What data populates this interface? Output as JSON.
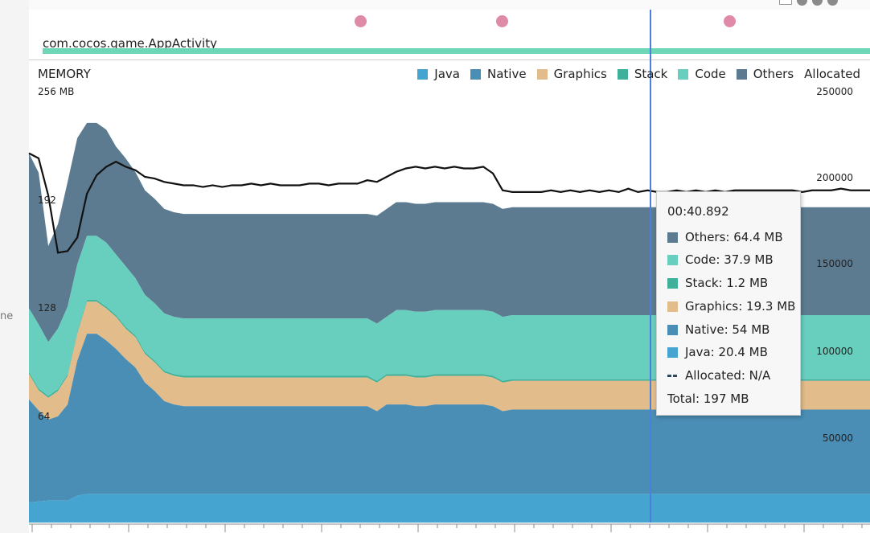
{
  "gutter_text": "ne",
  "activity": {
    "name": "com.cocos.game.AppActivity"
  },
  "chart": {
    "title": "MEMORY",
    "legend": [
      {
        "label": "Java",
        "color": "#45a5d0"
      },
      {
        "label": "Native",
        "color": "#4a8db5"
      },
      {
        "label": "Graphics",
        "color": "#e2bc8a"
      },
      {
        "label": "Stack",
        "color": "#3fb09a"
      },
      {
        "label": "Code",
        "color": "#68cfbf"
      },
      {
        "label": "Others",
        "color": "#5d7b90"
      },
      {
        "label": "Allocated",
        "color": null
      }
    ],
    "left_axis": [
      "256 MB",
      "192",
      "128",
      "64"
    ],
    "right_axis": [
      "250000",
      "200000",
      "150000",
      "100000",
      "50000"
    ]
  },
  "chart_data": {
    "type": "area",
    "title": "MEMORY",
    "stacked": true,
    "ylim": [
      0,
      256
    ],
    "ylabel_left": "MB",
    "ylim_right": [
      0,
      250000
    ],
    "x": [
      0,
      1,
      2,
      3,
      4,
      5,
      6,
      7,
      8,
      9,
      10,
      11,
      12,
      13,
      14,
      15,
      16,
      17,
      18,
      19,
      20,
      21,
      22,
      23,
      24,
      25,
      26,
      27,
      28,
      29,
      30,
      31,
      32,
      33,
      34,
      35,
      36,
      37,
      38,
      39,
      40,
      41,
      42,
      43,
      44,
      45,
      46,
      47,
      48,
      49,
      50,
      51,
      52,
      53,
      54,
      55,
      56,
      57,
      58,
      59,
      60,
      61,
      62,
      63,
      64,
      65,
      66,
      67,
      68,
      69,
      70,
      71,
      72,
      73,
      74,
      75,
      76,
      77,
      78,
      79,
      80,
      81,
      82,
      83,
      84,
      85,
      86,
      87
    ],
    "series": [
      {
        "name": "Java",
        "values": [
          12,
          12.5,
          13,
          13,
          13,
          16,
          17,
          17,
          17,
          17,
          17,
          17,
          17,
          17,
          17,
          17,
          17,
          17,
          17,
          17,
          17,
          17,
          17,
          17,
          17,
          17,
          17,
          17,
          17,
          17,
          17,
          17,
          17,
          17,
          17,
          17,
          17,
          17,
          17,
          17,
          17,
          17,
          17,
          17,
          17,
          17,
          17,
          17,
          17,
          17,
          17,
          17,
          17,
          17,
          17,
          17,
          17,
          17,
          17,
          17,
          17,
          17,
          17,
          17,
          17,
          17,
          17,
          17,
          17,
          17,
          17,
          17,
          17,
          17,
          17,
          17,
          17,
          17,
          17,
          17,
          17,
          17,
          17,
          17,
          17,
          17,
          17,
          17
        ]
      },
      {
        "name": "Native",
        "values": [
          61,
          54,
          48,
          50,
          57,
          80,
          95,
          95,
          91,
          86,
          80,
          75,
          66,
          61,
          55,
          53,
          52,
          52,
          52,
          52,
          52,
          52,
          52,
          52,
          52,
          52,
          52,
          52,
          52,
          52,
          52,
          52,
          52,
          52,
          52,
          52,
          49,
          53,
          53,
          53,
          52,
          52,
          53,
          53,
          53,
          53,
          53,
          53,
          52,
          49,
          50,
          50,
          50,
          50,
          50,
          50,
          50,
          50,
          50,
          50,
          50,
          50,
          50,
          50,
          50,
          50,
          50,
          50,
          50,
          50,
          50,
          50,
          50,
          50,
          50,
          50,
          50,
          50,
          50,
          50,
          50,
          50,
          50,
          50,
          50,
          50,
          50,
          50
        ]
      },
      {
        "name": "Graphics",
        "values": [
          15,
          12,
          13,
          15,
          17,
          16,
          19,
          19,
          19,
          19,
          18,
          18,
          17,
          17,
          17,
          17,
          17,
          17,
          17,
          17,
          17,
          17,
          17,
          17,
          17,
          17,
          17,
          17,
          17,
          17,
          17,
          17,
          17,
          17,
          17,
          17,
          17,
          17,
          17,
          17,
          17,
          17,
          17,
          17,
          17,
          17,
          17,
          17,
          17,
          17,
          17,
          17,
          17,
          17,
          17,
          17,
          17,
          17,
          17,
          17,
          17,
          17,
          17,
          17,
          17,
          17,
          17,
          17,
          17,
          17,
          17,
          17,
          17,
          17,
          17,
          17,
          17,
          17,
          17,
          17,
          17,
          17,
          17,
          17,
          17,
          17,
          17,
          17
        ]
      },
      {
        "name": "Stack",
        "values": [
          1,
          1,
          1,
          1,
          1,
          1,
          1,
          1,
          1,
          1,
          1,
          1,
          1,
          1,
          1,
          1,
          1,
          1,
          1,
          1,
          1,
          1,
          1,
          1,
          1,
          1,
          1,
          1,
          1,
          1,
          1,
          1,
          1,
          1,
          1,
          1,
          1,
          1,
          1,
          1,
          1,
          1,
          1,
          1,
          1,
          1,
          1,
          1,
          1,
          1,
          1,
          1,
          1,
          1,
          1,
          1,
          1,
          1,
          1,
          1,
          1,
          1,
          1,
          1,
          1,
          1,
          1,
          1,
          1,
          1,
          1,
          1,
          1,
          1,
          1,
          1,
          1,
          1,
          1,
          1,
          1,
          1,
          1,
          1,
          1,
          1,
          1,
          1
        ]
      },
      {
        "name": "Code",
        "values": [
          38,
          38,
          32,
          36,
          40,
          40,
          38,
          38,
          38,
          36,
          36,
          34,
          34,
          34,
          34,
          34,
          34,
          34,
          34,
          34,
          34,
          34,
          34,
          34,
          34,
          34,
          34,
          34,
          34,
          34,
          34,
          34,
          34,
          34,
          34,
          34,
          34,
          34,
          38,
          38,
          38,
          38,
          38,
          38,
          38,
          38,
          38,
          38,
          38,
          38,
          38,
          38,
          38,
          38,
          38,
          38,
          38,
          38,
          38,
          38,
          38,
          38,
          38,
          38,
          38,
          38,
          38,
          38,
          38,
          38,
          38,
          38,
          38,
          38,
          38,
          38,
          38,
          38,
          38,
          38,
          38,
          38,
          38,
          38,
          38,
          38,
          38,
          38
        ]
      },
      {
        "name": "Others",
        "values": [
          92,
          90,
          57,
          62,
          74,
          75,
          67,
          67,
          67,
          64,
          64,
          63,
          62,
          62,
          62,
          62,
          62,
          62,
          62,
          62,
          62,
          62,
          62,
          62,
          62,
          62,
          62,
          62,
          62,
          62,
          62,
          62,
          62,
          62,
          62,
          62,
          64,
          64,
          64,
          64,
          64,
          64,
          64,
          64,
          64,
          64,
          64,
          64,
          64,
          64,
          64,
          64,
          64,
          64,
          64,
          64,
          64,
          64,
          64,
          64,
          64,
          64,
          64,
          64,
          64,
          64,
          64,
          64,
          64,
          64,
          64,
          64,
          64,
          64,
          64,
          64,
          64,
          64,
          64,
          64,
          64,
          64,
          64,
          64,
          64,
          64,
          64,
          64
        ]
      }
    ],
    "total_line_mb": [
      219,
      216,
      194,
      160,
      161,
      169,
      195,
      206,
      211,
      214,
      211,
      209,
      205,
      204,
      202,
      201,
      200,
      200,
      199,
      200,
      199,
      200,
      200,
      201,
      200,
      201,
      200,
      200,
      200,
      201,
      201,
      200,
      201,
      201,
      201,
      203,
      202,
      205,
      208,
      210,
      211,
      210,
      211,
      210,
      211,
      210,
      210,
      211,
      207,
      197,
      196,
      196,
      196,
      196,
      197,
      196,
      197,
      196,
      197,
      196,
      197,
      196,
      198,
      196,
      197,
      196,
      196,
      197,
      196,
      197,
      196,
      197,
      196,
      197,
      197,
      197,
      197,
      197,
      197,
      197,
      196,
      197,
      197,
      197,
      198,
      197,
      197,
      197
    ],
    "cursor_time": "00:40.892"
  },
  "tooltip": {
    "time": "00:40.892",
    "rows": [
      {
        "label": "Others: 64.4 MB",
        "color": "#5d7b90"
      },
      {
        "label": "Code: 37.9 MB",
        "color": "#68cfbf"
      },
      {
        "label": "Stack: 1.2 MB",
        "color": "#3fb09a"
      },
      {
        "label": "Graphics: 19.3 MB",
        "color": "#e2bc8a"
      },
      {
        "label": "Native: 54 MB",
        "color": "#4a8db5"
      },
      {
        "label": "Java: 20.4 MB",
        "color": "#45a5d0"
      }
    ],
    "allocated": "Allocated: N/A",
    "total": "Total: 197 MB"
  }
}
